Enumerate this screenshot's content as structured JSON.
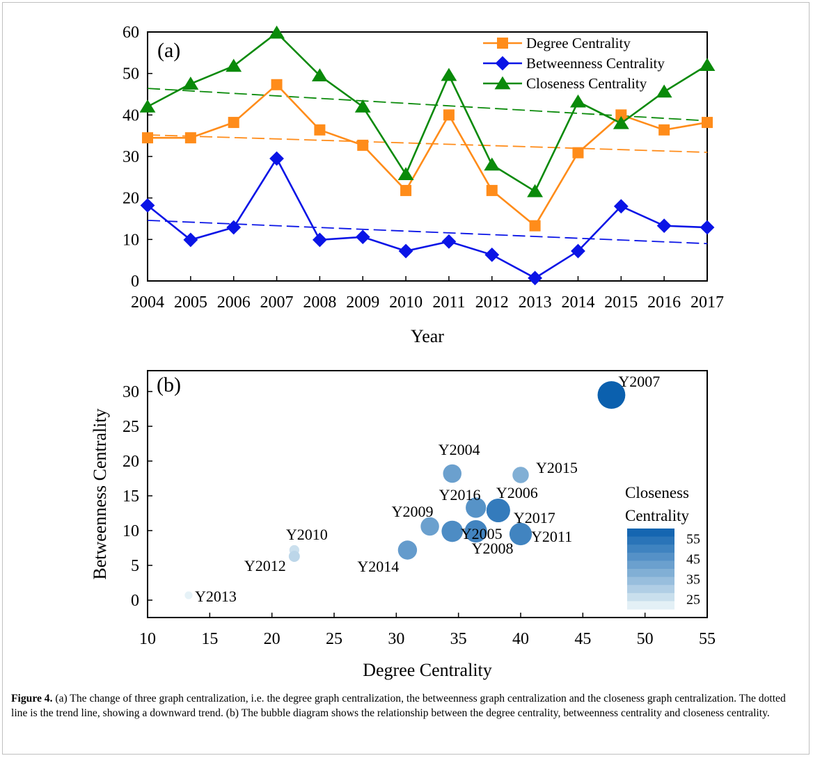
{
  "figure": {
    "caption_label": "Figure 4.",
    "caption_text": " (a) The change of three graph centralization, i.e. the degree graph centralization, the betweenness graph centralization and the closeness graph centralization. The dotted line is the trend line, showing a downward trend. (b) The bubble diagram shows the relationship between the degree centrality, betweenness centrality and closeness centrality."
  },
  "chart_data": [
    {
      "panel": "(a)",
      "type": "line",
      "xlabel": "Year",
      "ylabel": "",
      "x": [
        "2004",
        "2005",
        "2006",
        "2007",
        "2008",
        "2009",
        "2010",
        "2011",
        "2012",
        "2013",
        "2014",
        "2015",
        "2016",
        "2017"
      ],
      "ylim": [
        0,
        60
      ],
      "yticks": [
        0,
        10,
        20,
        30,
        40,
        50,
        60
      ],
      "legend_position": "top-right",
      "grid": false,
      "series": [
        {
          "name": "Degree Centrality",
          "color": "#ff8c1a",
          "marker": "square",
          "values": [
            34.5,
            34.5,
            38.2,
            47.3,
            36.4,
            32.7,
            21.8,
            40.0,
            21.8,
            13.3,
            30.9,
            40.0,
            36.4,
            38.2
          ],
          "trend": [
            35.2,
            31.0
          ]
        },
        {
          "name": "Betweenness Centrality",
          "color": "#0a14e6",
          "marker": "diamond",
          "values": [
            18.2,
            9.9,
            12.9,
            29.5,
            9.9,
            10.6,
            7.2,
            9.5,
            6.3,
            0.7,
            7.2,
            18.0,
            13.3,
            12.9
          ],
          "trend": [
            14.6,
            9.0
          ]
        },
        {
          "name": "Closeness Centrality",
          "color": "#0a8a0a",
          "marker": "triangle",
          "values": [
            42.0,
            47.5,
            51.8,
            59.8,
            49.5,
            42.0,
            25.7,
            49.6,
            28.0,
            21.6,
            43.2,
            38.0,
            45.6,
            52.0
          ],
          "trend": [
            46.4,
            38.6
          ]
        }
      ]
    },
    {
      "panel": "(b)",
      "type": "scatter",
      "xlabel": "Degree Centrality",
      "ylabel": "Betweenness Centrality",
      "xlim": [
        10,
        55
      ],
      "ylim": [
        -2.5,
        33
      ],
      "xticks": [
        10,
        15,
        20,
        25,
        30,
        35,
        40,
        45,
        50,
        55
      ],
      "yticks": [
        0,
        5,
        10,
        15,
        20,
        25,
        30
      ],
      "colorbar": {
        "title_line1": "Closeness",
        "title_line2": "Centrality",
        "range": [
          20,
          60
        ],
        "tick_labels": [
          "55",
          "45",
          "35",
          "25"
        ],
        "tick_values": [
          55,
          45,
          35,
          25
        ],
        "color_low": "#f3fbfb",
        "color_high": "#0a5fae"
      },
      "points": [
        {
          "label": "Y2004",
          "x": 34.5,
          "y": 18.2,
          "size": 42.0
        },
        {
          "label": "Y2005",
          "x": 34.5,
          "y": 9.9,
          "size": 47.5
        },
        {
          "label": "Y2006",
          "x": 38.2,
          "y": 12.9,
          "size": 51.8
        },
        {
          "label": "Y2007",
          "x": 47.3,
          "y": 29.5,
          "size": 59.8
        },
        {
          "label": "Y2008",
          "x": 36.4,
          "y": 9.9,
          "size": 49.5
        },
        {
          "label": "Y2009",
          "x": 32.7,
          "y": 10.6,
          "size": 42.0
        },
        {
          "label": "Y2010",
          "x": 21.8,
          "y": 7.2,
          "size": 25.7
        },
        {
          "label": "Y2011",
          "x": 40.0,
          "y": 9.5,
          "size": 49.6
        },
        {
          "label": "Y2012",
          "x": 21.8,
          "y": 6.3,
          "size": 28.0
        },
        {
          "label": "Y2013",
          "x": 13.3,
          "y": 0.7,
          "size": 21.6
        },
        {
          "label": "Y2014",
          "x": 30.9,
          "y": 7.2,
          "size": 43.2
        },
        {
          "label": "Y2015",
          "x": 40.0,
          "y": 18.0,
          "size": 38.0
        },
        {
          "label": "Y2016",
          "x": 36.4,
          "y": 13.3,
          "size": 45.6
        },
        {
          "label": "Y2017",
          "x": 38.2,
          "y": 12.9,
          "size": 52.0
        }
      ]
    }
  ]
}
